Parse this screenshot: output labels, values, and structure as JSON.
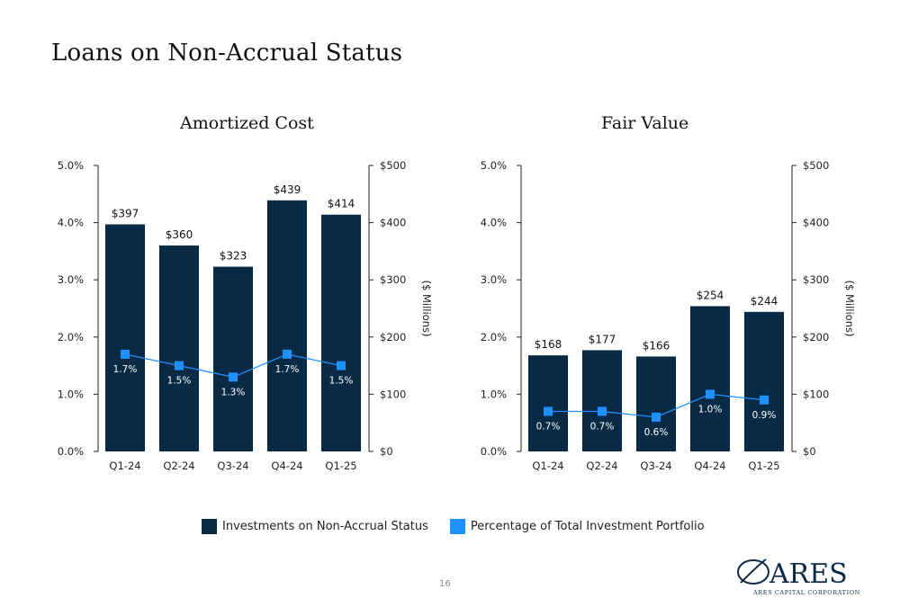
{
  "page": {
    "title": "Loans on Non-Accrual Status",
    "page_number": "16"
  },
  "legend": {
    "bar_label": "Investments on Non-Accrual Status",
    "line_label": "Percentage of Total Investment Portfolio"
  },
  "colors": {
    "bar": "#092A44",
    "line": "#1E90FF",
    "axis": "#222222"
  },
  "logo": {
    "name": "ARES",
    "subtitle": "ARES CAPITAL CORPORATION"
  },
  "chart_data": [
    {
      "type": "bar",
      "title": "Amortized Cost",
      "categories": [
        "Q1-24",
        "Q2-24",
        "Q3-24",
        "Q4-24",
        "Q1-25"
      ],
      "series": [
        {
          "name": "Investments on Non-Accrual Status",
          "axis": "right",
          "values": [
            397,
            360,
            323,
            439,
            414
          ],
          "labels": [
            "$397",
            "$360",
            "$323",
            "$439",
            "$414"
          ]
        },
        {
          "name": "Percentage of Total Investment Portfolio",
          "type": "line",
          "axis": "left",
          "values": [
            1.7,
            1.5,
            1.3,
            1.7,
            1.5
          ],
          "labels": [
            "1.7%",
            "1.5%",
            "1.3%",
            "1.7%",
            "1.5%"
          ]
        }
      ],
      "y_left": {
        "ticks": [
          "0.0%",
          "1.0%",
          "2.0%",
          "3.0%",
          "4.0%",
          "5.0%"
        ],
        "ylim": [
          0,
          5
        ]
      },
      "y_right": {
        "ticks": [
          "$0",
          "$100",
          "$200",
          "$300",
          "$400",
          "$500"
        ],
        "ylim": [
          0,
          500
        ],
        "label": "($ Millions)"
      },
      "grid": false
    },
    {
      "type": "bar",
      "title": "Fair Value",
      "categories": [
        "Q1-24",
        "Q2-24",
        "Q3-24",
        "Q4-24",
        "Q1-25"
      ],
      "series": [
        {
          "name": "Investments on Non-Accrual Status",
          "axis": "right",
          "values": [
            168,
            177,
            166,
            254,
            244
          ],
          "labels": [
            "$168",
            "$177",
            "$166",
            "$254",
            "$244"
          ]
        },
        {
          "name": "Percentage of Total Investment Portfolio",
          "type": "line",
          "axis": "left",
          "values": [
            0.7,
            0.7,
            0.6,
            1.0,
            0.9
          ],
          "labels": [
            "0.7%",
            "0.7%",
            "0.6%",
            "1.0%",
            "0.9%"
          ]
        }
      ],
      "y_left": {
        "ticks": [
          "0.0%",
          "1.0%",
          "2.0%",
          "3.0%",
          "4.0%",
          "5.0%"
        ],
        "ylim": [
          0,
          5
        ]
      },
      "y_right": {
        "ticks": [
          "$0",
          "$100",
          "$200",
          "$300",
          "$400",
          "$500"
        ],
        "ylim": [
          0,
          500
        ],
        "label": "($ Millions)"
      },
      "grid": false
    }
  ]
}
